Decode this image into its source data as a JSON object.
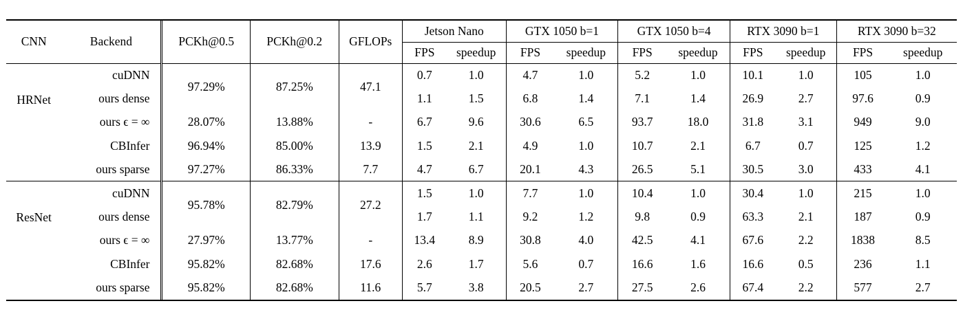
{
  "table": {
    "header": {
      "cnn": "CNN",
      "backend": "Backend",
      "pckh05": "PCKh@0.5",
      "pckh02": "PCKh@0.2",
      "gflops": "GFLOPs",
      "groups": [
        {
          "label": "Jetson Nano"
        },
        {
          "label": "GTX 1050 b=1"
        },
        {
          "label": "GTX 1050 b=4"
        },
        {
          "label": "RTX 3090 b=1"
        },
        {
          "label": "RTX 3090 b=32"
        }
      ],
      "fps_label": "FPS",
      "speedup_label": "speedup"
    },
    "sections": [
      {
        "cnn": "HRNet",
        "rows": [
          {
            "backend": "cuDNN",
            "pckh05": "97.29%",
            "pckh02": "87.25%",
            "gflops": "47.1",
            "stat_rowspan": 2,
            "values": [
              "0.7",
              "1.0",
              "4.7",
              "1.0",
              "5.2",
              "1.0",
              "10.1",
              "1.0",
              "105",
              "1.0"
            ]
          },
          {
            "backend": "ours dense",
            "merged": true,
            "values": [
              "1.1",
              "1.5",
              "6.8",
              "1.4",
              "7.1",
              "1.4",
              "26.9",
              "2.7",
              "97.6",
              "0.9"
            ]
          },
          {
            "backend": "ours ϵ = ∞",
            "pckh05": "28.07%",
            "pckh02": "13.88%",
            "gflops": "-",
            "values": [
              "6.7",
              "9.6",
              "30.6",
              "6.5",
              "93.7",
              "18.0",
              "31.8",
              "3.1",
              "949",
              "9.0"
            ]
          },
          {
            "backend": "CBInfer",
            "pckh05": "96.94%",
            "pckh02": "85.00%",
            "gflops": "13.9",
            "values": [
              "1.5",
              "2.1",
              "4.9",
              "1.0",
              "10.7",
              "2.1",
              "6.7",
              "0.7",
              "125",
              "1.2"
            ]
          },
          {
            "backend": "ours sparse",
            "pckh05": "97.27%",
            "pckh02": "86.33%",
            "gflops": "7.7",
            "values": [
              "4.7",
              "6.7",
              "20.1",
              "4.3",
              "26.5",
              "5.1",
              "30.5",
              "3.0",
              "433",
              "4.1"
            ]
          }
        ]
      },
      {
        "cnn": "ResNet",
        "rows": [
          {
            "backend": "cuDNN",
            "pckh05": "95.78%",
            "pckh02": "82.79%",
            "gflops": "27.2",
            "stat_rowspan": 2,
            "values": [
              "1.5",
              "1.0",
              "7.7",
              "1.0",
              "10.4",
              "1.0",
              "30.4",
              "1.0",
              "215",
              "1.0"
            ]
          },
          {
            "backend": "ours dense",
            "merged": true,
            "values": [
              "1.7",
              "1.1",
              "9.2",
              "1.2",
              "9.8",
              "0.9",
              "63.3",
              "2.1",
              "187",
              "0.9"
            ]
          },
          {
            "backend": "ours ϵ = ∞",
            "pckh05": "27.97%",
            "pckh02": "13.77%",
            "gflops": "-",
            "values": [
              "13.4",
              "8.9",
              "30.8",
              "4.0",
              "42.5",
              "4.1",
              "67.6",
              "2.2",
              "1838",
              "8.5"
            ]
          },
          {
            "backend": "CBInfer",
            "pckh05": "95.82%",
            "pckh02": "82.68%",
            "gflops": "17.6",
            "values": [
              "2.6",
              "1.7",
              "5.6",
              "0.7",
              "16.6",
              "1.6",
              "16.6",
              "0.5",
              "236",
              "1.1"
            ]
          },
          {
            "backend": "ours sparse",
            "pckh05": "95.82%",
            "pckh02": "82.68%",
            "gflops": "11.6",
            "values": [
              "5.7",
              "3.8",
              "20.5",
              "2.7",
              "27.5",
              "2.6",
              "67.4",
              "2.2",
              "577",
              "2.7"
            ]
          }
        ]
      }
    ]
  }
}
